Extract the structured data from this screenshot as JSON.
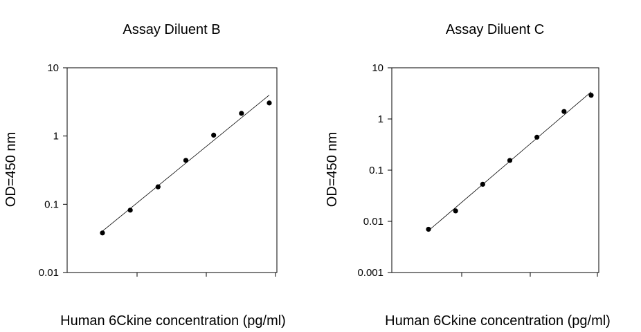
{
  "chart_data": [
    {
      "type": "scatter",
      "title": "Assay Diluent B",
      "xlabel": "Human 6Ckine concentration (pg/ml)",
      "ylabel": "OD=450 nm",
      "y_scale": "log",
      "ylim": [
        0.01,
        10
      ],
      "y_ticks": [
        0.01,
        0.1,
        1,
        10
      ],
      "y_tick_labels": [
        "0.01",
        "0.1",
        "1",
        "10"
      ],
      "x_scale": "log",
      "x_tick_labels_shown": false,
      "points": [
        {
          "x": 1,
          "y": 0.038
        },
        {
          "x": 2,
          "y": 0.082
        },
        {
          "x": 4,
          "y": 0.18
        },
        {
          "x": 8,
          "y": 0.44
        },
        {
          "x": 16,
          "y": 1.03
        },
        {
          "x": 32,
          "y": 2.15
        },
        {
          "x": 64,
          "y": 3.05
        }
      ],
      "fit_line": true,
      "grid": false
    },
    {
      "type": "scatter",
      "title": "Assay Diluent C",
      "xlabel": "Human 6Ckine concentration (pg/ml)",
      "ylabel": "OD=450 nm",
      "y_scale": "log",
      "ylim": [
        0.001,
        10
      ],
      "y_ticks": [
        0.001,
        0.01,
        0.1,
        1,
        10
      ],
      "y_tick_labels": [
        "0.001",
        "0.01",
        "0.1",
        "1",
        "10"
      ],
      "x_scale": "log",
      "x_tick_labels_shown": false,
      "points": [
        {
          "x": 1,
          "y": 0.007
        },
        {
          "x": 2,
          "y": 0.016
        },
        {
          "x": 4,
          "y": 0.053
        },
        {
          "x": 8,
          "y": 0.155
        },
        {
          "x": 16,
          "y": 0.44
        },
        {
          "x": 32,
          "y": 1.4
        },
        {
          "x": 64,
          "y": 2.9
        }
      ],
      "fit_line": true,
      "grid": false
    }
  ]
}
